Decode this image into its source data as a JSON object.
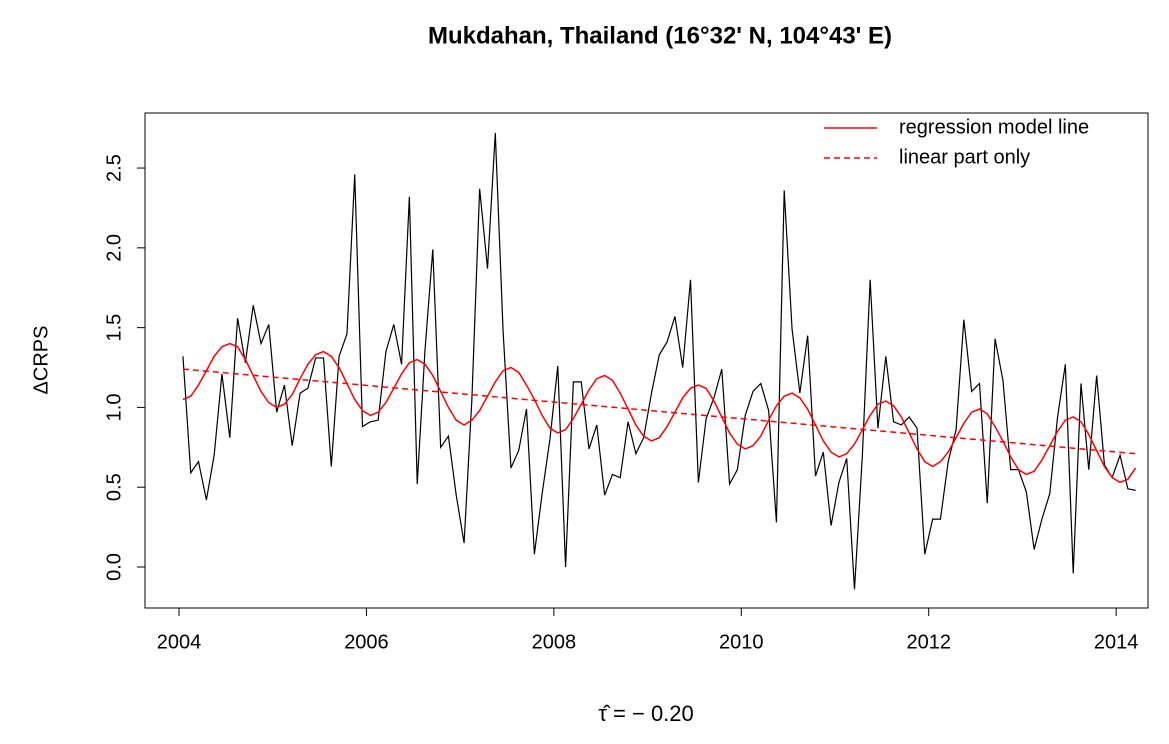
{
  "chart_data": {
    "type": "line",
    "title": "Mukdahan, Thailand (16°32' N, 104°43' E)",
    "y_label": "ΔCRPS",
    "x_label": "τ̂ = − 0.20",
    "xlim": [
      2003.637,
      2014.34
    ],
    "ylim": [
      -0.257,
      2.845
    ],
    "xticks": [
      2004,
      2006,
      2008,
      2010,
      2012,
      2014
    ],
    "yticks": [
      {
        "value": 0,
        "label": "0.0"
      },
      0.5,
      {
        "value": 1,
        "label": "1.0"
      },
      1.5,
      {
        "value": 2,
        "label": "2.0"
      },
      2.5
    ],
    "legend": "top-right",
    "x": [
      2004.042,
      2004.125,
      2004.208,
      2004.292,
      2004.375,
      2004.458,
      2004.542,
      2004.625,
      2004.708,
      2004.792,
      2004.875,
      2004.958,
      2005.042,
      2005.125,
      2005.208,
      2005.292,
      2005.375,
      2005.458,
      2005.542,
      2005.625,
      2005.708,
      2005.792,
      2005.875,
      2005.958,
      2006.042,
      2006.125,
      2006.208,
      2006.292,
      2006.375,
      2006.458,
      2006.542,
      2006.625,
      2006.708,
      2006.792,
      2006.875,
      2006.958,
      2007.042,
      2007.125,
      2007.208,
      2007.292,
      2007.375,
      2007.458,
      2007.542,
      2007.625,
      2007.708,
      2007.792,
      2007.875,
      2007.958,
      2008.042,
      2008.125,
      2008.208,
      2008.292,
      2008.375,
      2008.458,
      2008.542,
      2008.625,
      2008.708,
      2008.792,
      2008.875,
      2008.958,
      2009.042,
      2009.125,
      2009.208,
      2009.292,
      2009.375,
      2009.458,
      2009.542,
      2009.625,
      2009.708,
      2009.792,
      2009.875,
      2009.958,
      2010.042,
      2010.125,
      2010.208,
      2010.292,
      2010.375,
      2010.458,
      2010.542,
      2010.625,
      2010.708,
      2010.792,
      2010.875,
      2010.958,
      2011.042,
      2011.125,
      2011.208,
      2011.292,
      2011.375,
      2011.458,
      2011.542,
      2011.625,
      2011.708,
      2011.792,
      2011.875,
      2011.958,
      2012.042,
      2012.125,
      2012.208,
      2012.292,
      2012.375,
      2012.458,
      2012.542,
      2012.625,
      2012.708,
      2012.792,
      2012.875,
      2012.958,
      2013.042,
      2013.125,
      2013.208,
      2013.292,
      2013.375,
      2013.458,
      2013.542,
      2013.625,
      2013.708,
      2013.792,
      2013.875,
      2013.958,
      2014.042,
      2014.125,
      2014.208
    ],
    "series": [
      {
        "color": "#000000",
        "dash": false,
        "values": [
          1.32,
          0.59,
          0.66,
          0.42,
          0.7,
          1.21,
          0.81,
          1.56,
          1.28,
          1.64,
          1.4,
          1.52,
          0.97,
          1.14,
          0.76,
          1.09,
          1.12,
          1.31,
          1.31,
          0.63,
          1.32,
          1.46,
          2.46,
          0.88,
          0.91,
          0.92,
          1.35,
          1.52,
          1.27,
          2.32,
          0.52,
          1.36,
          1.99,
          0.75,
          0.82,
          0.45,
          0.15,
          1.05,
          2.37,
          1.87,
          2.72,
          1.48,
          0.62,
          0.73,
          0.99,
          0.08,
          0.46,
          0.8,
          1.26,
          0.0,
          1.16,
          1.16,
          0.74,
          0.89,
          0.45,
          0.58,
          0.56,
          0.91,
          0.71,
          0.81,
          1.09,
          1.33,
          1.41,
          1.57,
          1.25,
          1.8,
          0.53,
          0.93,
          1.06,
          1.24,
          0.52,
          0.61,
          0.95,
          1.1,
          1.15,
          0.98,
          0.28,
          2.36,
          1.49,
          1.09,
          1.45,
          0.57,
          0.72,
          0.26,
          0.53,
          0.68,
          -0.14,
          0.7,
          1.8,
          0.87,
          1.32,
          0.91,
          0.89,
          0.94,
          0.87,
          0.08,
          0.3,
          0.3,
          0.66,
          0.86,
          1.55,
          1.1,
          1.15,
          0.4,
          1.43,
          1.17,
          0.61,
          0.61,
          0.47,
          0.11,
          0.3,
          0.46,
          0.94,
          1.27,
          -0.04,
          1.15,
          0.61,
          1.2,
          0.64,
          0.56,
          0.7,
          0.49,
          0.48
        ]
      },
      {
        "name": "regression model line",
        "color": "#ff0000",
        "dash": false,
        "values": [
          1.05,
          1.07,
          1.14,
          1.23,
          1.32,
          1.38,
          1.4,
          1.38,
          1.3,
          1.2,
          1.1,
          1.03,
          1.0,
          1.02,
          1.08,
          1.18,
          1.27,
          1.33,
          1.35,
          1.32,
          1.25,
          1.15,
          1.05,
          0.98,
          0.95,
          0.97,
          1.03,
          1.12,
          1.21,
          1.28,
          1.3,
          1.27,
          1.2,
          1.1,
          1.0,
          0.92,
          0.89,
          0.92,
          0.98,
          1.07,
          1.16,
          1.23,
          1.25,
          1.22,
          1.14,
          1.05,
          0.95,
          0.87,
          0.84,
          0.86,
          0.93,
          1.02,
          1.11,
          1.18,
          1.2,
          1.17,
          1.09,
          0.99,
          0.89,
          0.82,
          0.79,
          0.81,
          0.88,
          0.97,
          1.06,
          1.12,
          1.14,
          1.12,
          1.04,
          0.94,
          0.84,
          0.77,
          0.74,
          0.76,
          0.82,
          0.92,
          1.01,
          1.07,
          1.09,
          1.06,
          0.99,
          0.89,
          0.79,
          0.72,
          0.69,
          0.71,
          0.77,
          0.86,
          0.95,
          1.02,
          1.04,
          1.01,
          0.94,
          0.84,
          0.74,
          0.66,
          0.63,
          0.66,
          0.72,
          0.81,
          0.9,
          0.97,
          0.99,
          0.96,
          0.88,
          0.79,
          0.69,
          0.61,
          0.58,
          0.6,
          0.67,
          0.76,
          0.85,
          0.92,
          0.94,
          0.91,
          0.83,
          0.73,
          0.63,
          0.56,
          0.53,
          0.55,
          0.62
        ]
      },
      {
        "name": "linear part only",
        "color": "#ff0000",
        "dash": true,
        "x": [
          2004.042,
          2014.208
        ],
        "values": [
          1.24,
          0.71
        ]
      }
    ]
  }
}
